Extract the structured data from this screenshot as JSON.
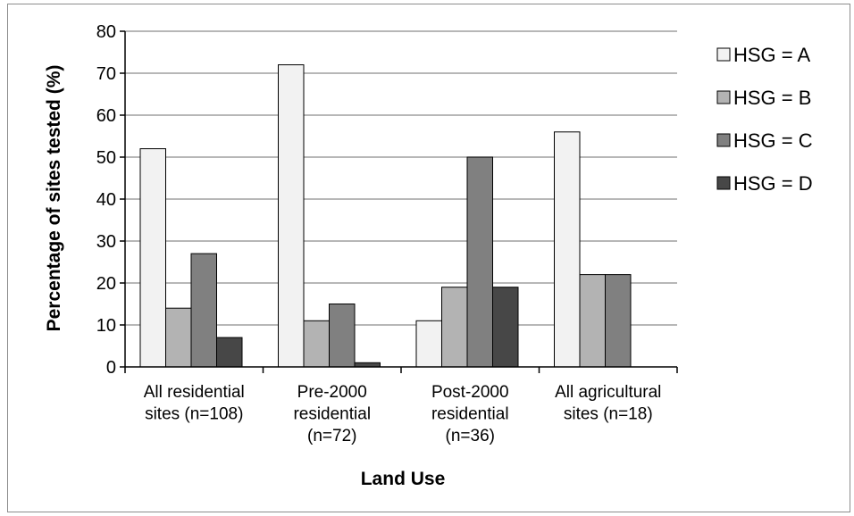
{
  "chart_data": {
    "type": "bar",
    "title": "",
    "xlabel": "Land Use",
    "ylabel": "Percentage of sites tested (%)",
    "ylim": [
      0,
      80
    ],
    "yticks": [
      "0",
      "10",
      "20",
      "30",
      "40",
      "50",
      "60",
      "70",
      "80"
    ],
    "grid": true,
    "legend_position": "right",
    "categories": [
      [
        "All residential",
        "sites (n=108)"
      ],
      [
        "Pre-2000",
        "residential",
        "(n=72)"
      ],
      [
        "Post-2000",
        "residential",
        "(n=36)"
      ],
      [
        "All agricultural",
        "sites (n=18)"
      ]
    ],
    "series": [
      {
        "name": "HSG = A",
        "color": "#f2f2f2",
        "values": [
          52,
          72,
          11,
          56
        ]
      },
      {
        "name": "HSG = B",
        "color": "#b3b3b3",
        "values": [
          14,
          11,
          19,
          22
        ]
      },
      {
        "name": "HSG = C",
        "color": "#808080",
        "values": [
          27,
          15,
          50,
          22
        ]
      },
      {
        "name": "HSG = D",
        "color": "#474747",
        "values": [
          7,
          1,
          19,
          0
        ]
      }
    ]
  }
}
